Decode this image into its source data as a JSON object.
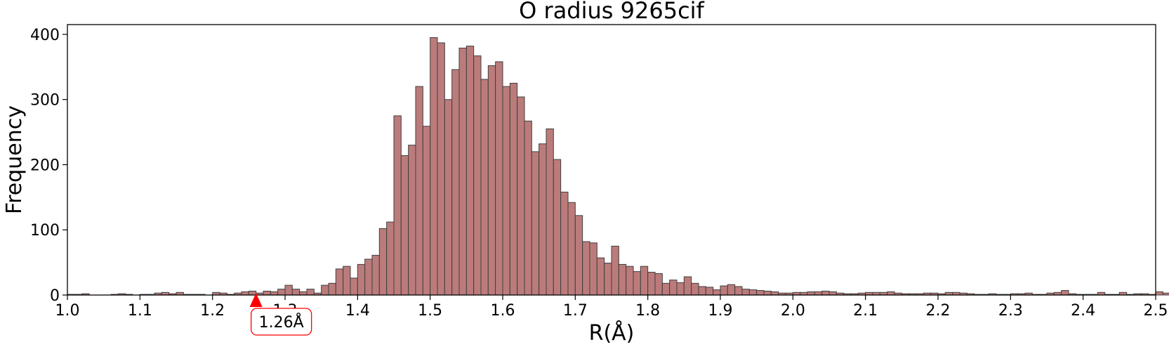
{
  "chart_data": {
    "type": "bar",
    "title": "O radius  9265cif",
    "xlabel": "R(Å)",
    "ylabel": "Frequency",
    "xlim": [
      1.0,
      2.5
    ],
    "ylim": [
      0,
      415
    ],
    "xticks": [
      1.0,
      1.1,
      1.2,
      1.3,
      1.4,
      1.5,
      1.6,
      1.7,
      1.8,
      1.9,
      2.0,
      2.1,
      2.2,
      2.3,
      2.4,
      2.5
    ],
    "xtick_labels": [
      "1.0",
      "1.1",
      "1.2",
      "1.3",
      "1.4",
      "1.5",
      "1.6",
      "1.7",
      "1.8",
      "1.9",
      "2.0",
      "2.1",
      "2.2",
      "2.3",
      "2.4",
      "2.5"
    ],
    "yticks": [
      0,
      100,
      200,
      300,
      400
    ],
    "ytick_labels": [
      "0",
      "100",
      "200",
      "300",
      "400"
    ],
    "bin_start": 1.0,
    "bin_width": 0.01,
    "values": [
      1,
      1,
      2,
      0,
      0,
      0,
      1,
      2,
      1,
      0,
      1,
      1,
      3,
      4,
      2,
      4,
      1,
      1,
      1,
      0,
      4,
      3,
      1,
      3,
      5,
      6,
      3,
      6,
      5,
      9,
      15,
      9,
      5,
      9,
      3,
      15,
      18,
      40,
      44,
      26,
      47,
      55,
      61,
      102,
      112,
      275,
      214,
      230,
      320,
      259,
      395,
      387,
      300,
      346,
      379,
      382,
      367,
      331,
      352,
      358,
      320,
      325,
      304,
      267,
      220,
      232,
      255,
      208,
      158,
      142,
      122,
      82,
      80,
      57,
      49,
      75,
      47,
      44,
      36,
      44,
      35,
      33,
      18,
      23,
      19,
      28,
      18,
      13,
      12,
      8,
      14,
      16,
      13,
      9,
      8,
      7,
      6,
      5,
      3,
      3,
      4,
      4,
      5,
      5,
      6,
      5,
      3,
      2,
      2,
      3,
      4,
      4,
      4,
      5,
      3,
      2,
      2,
      2,
      3,
      3,
      2,
      4,
      4,
      3,
      2,
      1,
      1,
      2,
      1,
      1,
      2,
      2,
      3,
      1,
      1,
      3,
      4,
      7,
      2,
      1,
      1,
      1,
      4,
      1,
      1,
      4,
      1,
      2,
      2,
      1,
      5,
      3,
      1,
      1,
      1,
      1,
      3
    ],
    "bar_color": "#bc7b7b",
    "edge_color": "#3f3f3f",
    "grid": false,
    "annotation": {
      "x": 1.26,
      "label": "1.26Å",
      "color": "#ff0000"
    }
  }
}
